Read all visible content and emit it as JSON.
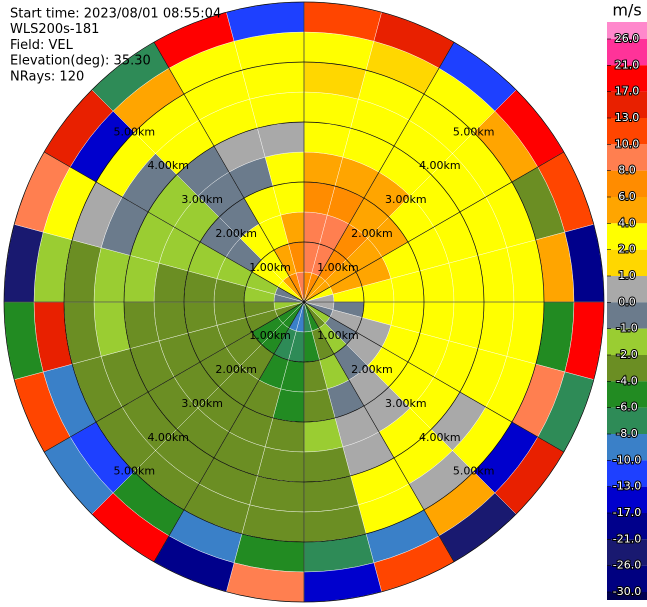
{
  "chart_data": {
    "type": "ppi",
    "annotations": [
      "Start time: 2023/08/01 08:55:04",
      "WLS200s-181",
      "Field: VEL",
      "Elevation(deg): 35.30",
      "NRays: 120"
    ],
    "rlim": [
      0,
      5
    ],
    "range_rings": [
      {
        "value": 1,
        "label": "1.00km"
      },
      {
        "value": 2,
        "label": "2.00km"
      },
      {
        "value": 3,
        "label": "3.00km"
      },
      {
        "value": 4,
        "label": "4.00km"
      },
      {
        "value": 5,
        "label": "5.00km"
      }
    ],
    "field": [
      [
        8,
        9,
        9,
        8,
        6,
        3,
        3,
        2,
        3,
        13
      ],
      [
        8,
        9,
        9,
        8,
        6,
        4,
        3,
        3,
        2,
        17
      ],
      [
        6,
        8,
        8,
        6,
        5,
        4,
        3,
        3,
        4,
        -10
      ],
      [
        5,
        6,
        6,
        5,
        4,
        3,
        3,
        3,
        6,
        21
      ],
      [
        3,
        5,
        5,
        4,
        4,
        3,
        3,
        3,
        -2,
        13
      ],
      [
        0.5,
        3,
        4,
        4,
        3,
        3,
        3,
        3,
        5,
        -17
      ],
      [
        0.5,
        -0.5,
        3,
        3,
        3,
        3,
        3,
        3,
        -4,
        21
      ],
      [
        -0.5,
        0.5,
        0.5,
        3,
        3,
        3,
        3,
        3,
        10,
        -6
      ],
      [
        -1.5,
        -0.5,
        0.5,
        3,
        3,
        3,
        0.5,
        3,
        -13,
        17
      ],
      [
        -3,
        -1.5,
        -0.5,
        0.5,
        0.5,
        3,
        3,
        0.5,
        6,
        -21
      ],
      [
        -5,
        -3,
        -1.5,
        -0.5,
        0.5,
        0.5,
        3,
        3,
        -8,
        13
      ],
      [
        -7,
        -5,
        -3,
        -3,
        -1.5,
        -3,
        -3,
        -3,
        -6,
        -13
      ],
      [
        -9,
        -7,
        -5,
        -5,
        -3,
        -3,
        -3,
        -3,
        -5,
        10
      ],
      [
        -9,
        -7,
        -5,
        -3,
        -3,
        -3,
        -3,
        -3,
        -9,
        -17
      ],
      [
        -5,
        -5,
        -3,
        -3,
        -3,
        -3,
        -3,
        -3,
        -5,
        21
      ],
      [
        -5,
        -5,
        -3,
        -3,
        -3,
        -3,
        -3,
        -3,
        -11,
        -9
      ],
      [
        -3,
        -3,
        -3,
        -3,
        -3,
        -3,
        -3,
        -3,
        -9,
        13
      ],
      [
        -1.5,
        -3,
        -3,
        -3,
        -3,
        -3,
        -1.5,
        -3,
        17,
        -5
      ],
      [
        -0.5,
        -1.5,
        -3,
        -3,
        -3,
        -1.5,
        -1.5,
        -3,
        -1.5,
        -21
      ],
      [
        -0.5,
        -1.5,
        -1.5,
        -1.5,
        -1.5,
        -1.5,
        -0.5,
        0.5,
        3,
        10
      ],
      [
        3,
        3,
        -0.5,
        -0.5,
        -1.5,
        -1.5,
        -0.5,
        3,
        -13,
        17
      ],
      [
        5,
        4,
        3,
        -0.5,
        -0.5,
        -0.5,
        3,
        3,
        6,
        -6
      ],
      [
        7,
        6,
        4,
        3,
        -0.5,
        0.5,
        3,
        3,
        3,
        21
      ],
      [
        9,
        8,
        6,
        3,
        3,
        0.5,
        3,
        3,
        3,
        -10
      ]
    ],
    "colorbar": {
      "title": "m/s",
      "ticks": [
        {
          "value": 26,
          "label": "26.0"
        },
        {
          "value": 21,
          "label": "21.0"
        },
        {
          "value": 17,
          "label": "17.0"
        },
        {
          "value": 13,
          "label": "13.0"
        },
        {
          "value": 10,
          "label": "10.0"
        },
        {
          "value": 8,
          "label": "8.0"
        },
        {
          "value": 6,
          "label": "6.0"
        },
        {
          "value": 4,
          "label": "4.0"
        },
        {
          "value": 2,
          "label": "2.0"
        },
        {
          "value": 1,
          "label": "1.0"
        },
        {
          "value": 0,
          "label": "0.0"
        },
        {
          "value": -1,
          "label": "-1.0"
        },
        {
          "value": -2,
          "label": "-2.0"
        },
        {
          "value": -4,
          "label": "-4.0"
        },
        {
          "value": -6,
          "label": "-6.0"
        },
        {
          "value": -8,
          "label": "-8.0"
        },
        {
          "value": -10,
          "label": "-10.0"
        },
        {
          "value": -13,
          "label": "-13.0"
        },
        {
          "value": -17,
          "label": "-17.0"
        },
        {
          "value": -21,
          "label": "-21.0"
        },
        {
          "value": -26,
          "label": "-26.0"
        },
        {
          "value": -30,
          "label": "-30.0"
        }
      ],
      "colors": [
        "#ff88cc",
        "#ff3399",
        "#ff0000",
        "#e82000",
        "#ff4500",
        "#ff7f50",
        "#ff8c00",
        "#ffa500",
        "#ffff00",
        "#ffd700",
        "#a9a9a9",
        "#6b7b8c",
        "#9acd32",
        "#6b8e23",
        "#228b22",
        "#2e8b57",
        "#3a80c8",
        "#1e40ff",
        "#0000cd",
        "#00008b",
        "#191970",
        "#000080",
        "#000050"
      ]
    }
  }
}
